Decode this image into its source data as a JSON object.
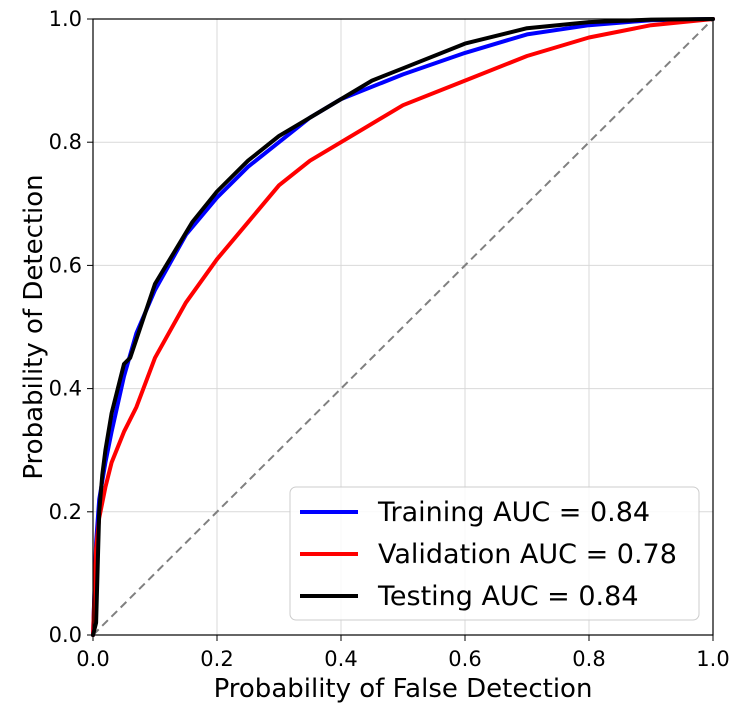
{
  "chart_data": {
    "type": "line",
    "xlabel": "Probability of False Detection",
    "ylabel": "Probability of Detection",
    "xlim": [
      0,
      1
    ],
    "ylim": [
      0,
      1
    ],
    "grid": true,
    "legend_position": "bottom-right",
    "x_ticks": [
      "0.0",
      "0.2",
      "0.4",
      "0.6",
      "0.8",
      "1.0"
    ],
    "y_ticks": [
      "0.0",
      "0.2",
      "0.4",
      "0.6",
      "0.8",
      "1.0"
    ],
    "series": [
      {
        "name": "Training AUC = 0.84",
        "color": "#0000ff",
        "x": [
          0.0,
          0.005,
          0.01,
          0.02,
          0.03,
          0.05,
          0.07,
          0.1,
          0.15,
          0.2,
          0.25,
          0.3,
          0.35,
          0.4,
          0.5,
          0.6,
          0.7,
          0.8,
          0.9,
          1.0
        ],
        "y": [
          0.0,
          0.15,
          0.22,
          0.28,
          0.33,
          0.42,
          0.49,
          0.56,
          0.65,
          0.71,
          0.76,
          0.8,
          0.84,
          0.87,
          0.91,
          0.945,
          0.975,
          0.99,
          0.998,
          1.0
        ]
      },
      {
        "name": "Validation AUC = 0.78",
        "color": "#ff0000",
        "x": [
          0.0,
          0.005,
          0.01,
          0.02,
          0.03,
          0.05,
          0.07,
          0.1,
          0.15,
          0.2,
          0.25,
          0.3,
          0.35,
          0.4,
          0.5,
          0.6,
          0.7,
          0.8,
          0.9,
          1.0
        ],
        "y": [
          0.0,
          0.14,
          0.19,
          0.24,
          0.28,
          0.33,
          0.37,
          0.45,
          0.54,
          0.61,
          0.67,
          0.73,
          0.77,
          0.8,
          0.86,
          0.9,
          0.94,
          0.97,
          0.99,
          1.0
        ]
      },
      {
        "name": "Testing AUC = 0.84",
        "color": "#000000",
        "x": [
          0.0,
          0.005,
          0.01,
          0.015,
          0.02,
          0.03,
          0.05,
          0.06,
          0.08,
          0.1,
          0.13,
          0.16,
          0.2,
          0.25,
          0.3,
          0.35,
          0.4,
          0.45,
          0.5,
          0.6,
          0.7,
          0.8,
          0.9,
          1.0
        ],
        "y": [
          0.0,
          0.02,
          0.2,
          0.26,
          0.3,
          0.36,
          0.44,
          0.45,
          0.51,
          0.57,
          0.62,
          0.67,
          0.72,
          0.77,
          0.81,
          0.84,
          0.87,
          0.9,
          0.92,
          0.96,
          0.985,
          0.995,
          0.999,
          1.0
        ]
      }
    ],
    "reference_line": {
      "x": [
        0,
        1
      ],
      "y": [
        0,
        1
      ],
      "color": "#808080",
      "style": "dashed"
    }
  }
}
